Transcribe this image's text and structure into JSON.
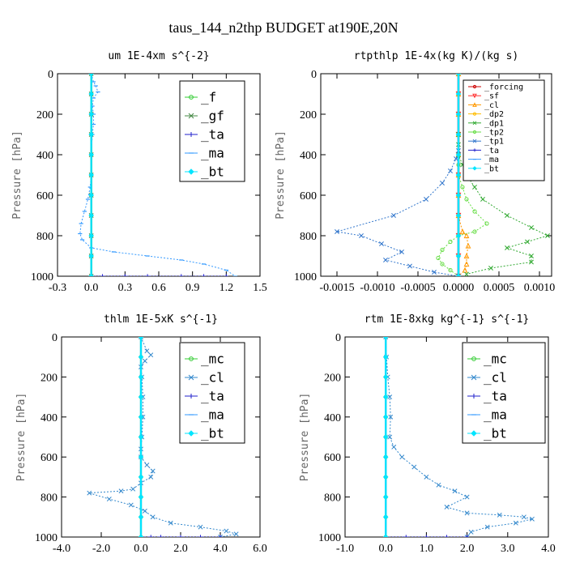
{
  "figure_title": "taus_144_n2thp  BUDGET at190E,20N",
  "chart_data": [
    {
      "type": "line",
      "title": "um  1E-4xm s^{-2}",
      "ylabel": "Pressure [hPa]",
      "xlim": [
        -0.3,
        1.5
      ],
      "ylim": [
        1000,
        0
      ],
      "xticks": [
        "-0.3",
        "0.0",
        "0.3",
        "0.6",
        "0.9",
        "1.2",
        "1.5"
      ],
      "xtick_values": [
        -0.3,
        0.0,
        0.3,
        0.6,
        0.9,
        1.2,
        1.5
      ],
      "yticks": [
        "0",
        "200",
        "400",
        "600",
        "800",
        "1000"
      ],
      "ytick_values": [
        0,
        200,
        400,
        600,
        800,
        1000
      ],
      "legend_position": "top-right",
      "legend_font_size": 16,
      "series": [
        {
          "name": "_f",
          "color": "#33cc33",
          "marker": "circle",
          "x": [
            0.0,
            0.0,
            0.0,
            0.0,
            0.0,
            0.0,
            0.0,
            0.0,
            0.0,
            0.0,
            0.0
          ],
          "y": [
            0,
            100,
            200,
            300,
            400,
            500,
            600,
            700,
            800,
            900,
            1000
          ]
        },
        {
          "name": "_gf",
          "color": "#448844",
          "marker": "x",
          "x": [
            0.0,
            0.0,
            0.0,
            0.0,
            0.0,
            0.0,
            0.0,
            0.0,
            0.0,
            0.0,
            0.0
          ],
          "y": [
            0,
            100,
            200,
            300,
            400,
            500,
            600,
            700,
            800,
            900,
            1000
          ]
        },
        {
          "name": "_ta",
          "color": "#2222cc",
          "marker": "plus",
          "x": [
            0.0,
            0.1,
            0.3,
            0.5,
            0.8,
            1.0,
            1.2
          ],
          "y": [
            1000,
            1000,
            1000,
            1000,
            1000,
            1000,
            1000
          ]
        },
        {
          "name": "_ma",
          "color": "#3399ff",
          "marker": "dash",
          "x": [
            0.0,
            0.02,
            0.04,
            0.06,
            0.02,
            0.01,
            0.02,
            0.02,
            0.01,
            0.0,
            0.0,
            -0.01,
            -0.03,
            -0.06,
            -0.09,
            -0.1,
            -0.08,
            0.0,
            0.2,
            0.5,
            0.8,
            1.0,
            1.2,
            1.28
          ],
          "y": [
            0,
            40,
            60,
            90,
            120,
            160,
            200,
            250,
            300,
            400,
            500,
            560,
            620,
            680,
            740,
            790,
            820,
            860,
            880,
            900,
            920,
            940,
            970,
            1000
          ]
        },
        {
          "name": "_bt",
          "color": "#00e5ff",
          "marker": "diamond",
          "x": [
            0.0,
            0.0,
            0.0,
            0.0,
            0.0,
            0.0,
            0.0,
            0.0,
            0.0,
            0.0,
            0.0
          ],
          "y": [
            0,
            100,
            200,
            300,
            400,
            500,
            600,
            700,
            800,
            900,
            1000
          ]
        }
      ]
    },
    {
      "type": "line",
      "title": "rtpthlp  1E-4x(kg K)/(kg s)",
      "ylabel": "Pressure [hPa]",
      "xlim": [
        -0.0017,
        0.00115
      ],
      "ylim": [
        1000,
        0
      ],
      "xticks": [
        "-0.0015",
        "-0.0010",
        "-0.0005",
        "0.0000",
        "0.0005",
        "0.0010"
      ],
      "xtick_values": [
        -0.0015,
        -0.001,
        -0.0005,
        0.0,
        0.0005,
        0.001
      ],
      "yticks": [
        "0",
        "200",
        "400",
        "600",
        "800",
        "1000"
      ],
      "ytick_values": [
        0,
        200,
        400,
        600,
        800,
        1000
      ],
      "legend_position": "top-right",
      "legend_font_size": 10,
      "series": [
        {
          "name": "_forcing",
          "color": "#cc0000",
          "marker": "circle",
          "x": [
            0.0,
            0.0,
            0.0,
            0.0,
            0.0,
            0.0,
            0.0,
            0.0,
            0.0,
            0.0,
            0.0
          ],
          "y": [
            0,
            100,
            200,
            300,
            400,
            500,
            600,
            700,
            800,
            900,
            1000
          ]
        },
        {
          "name": "_sf",
          "color": "#ff3333",
          "marker": "triangle-down",
          "x": [
            0.0,
            0.0,
            0.0,
            0.0,
            0.0,
            0.0,
            0.0,
            0.0,
            0.0,
            0.0,
            0.0
          ],
          "y": [
            0,
            100,
            200,
            300,
            400,
            500,
            600,
            700,
            800,
            900,
            1000
          ]
        },
        {
          "name": "_cl",
          "color": "#ff9900",
          "marker": "triangle",
          "x": [
            0.0,
            0.0,
            0.0,
            0.0,
            0.0,
            0.0,
            0.0,
            0.0,
            5e-05,
            0.0001,
            0.00012,
            0.0001,
            0.0001,
            8e-05,
            0.0
          ],
          "y": [
            0,
            100,
            200,
            300,
            400,
            500,
            600,
            700,
            780,
            800,
            850,
            900,
            940,
            970,
            1000
          ]
        },
        {
          "name": "_dp2",
          "color": "#ffbb00",
          "marker": "circle",
          "x": [
            0.0,
            0.0,
            0.0,
            0.0,
            0.0,
            0.0,
            0.0,
            0.0,
            0.0,
            0.0,
            0.0
          ],
          "y": [
            0,
            100,
            200,
            300,
            400,
            500,
            600,
            700,
            800,
            900,
            1000
          ]
        },
        {
          "name": "_dp1",
          "color": "#33aa33",
          "marker": "x",
          "x": [
            0.0,
            0.0,
            0.0,
            5e-05,
            0.0001,
            0.0002,
            0.0003,
            0.0006,
            0.0009,
            0.0011,
            0.00085,
            0.0006,
            0.0009,
            0.0009,
            0.0004,
            0.0001
          ],
          "y": [
            300,
            350,
            400,
            450,
            500,
            560,
            620,
            700,
            760,
            800,
            830,
            860,
            900,
            930,
            960,
            990
          ]
        },
        {
          "name": "_tp2",
          "color": "#66dd44",
          "marker": "circle",
          "x": [
            0.0,
            0.0,
            5e-05,
            0.0001,
            0.0002,
            0.00035,
            0.0002,
            0.0,
            -0.0001,
            -0.0002,
            -0.00025,
            -0.0002,
            -0.0001,
            0.0
          ],
          "y": [
            450,
            500,
            560,
            620,
            680,
            740,
            780,
            800,
            830,
            870,
            910,
            940,
            970,
            1000
          ]
        },
        {
          "name": "_tp1",
          "color": "#3377cc",
          "marker": "x",
          "x": [
            0.0,
            -3e-05,
            -0.0001,
            -0.0002,
            -0.0004,
            -0.0008,
            -0.0015,
            -0.0012,
            -0.00095,
            -0.0007,
            -0.0009,
            -0.0006,
            -0.0003,
            0.0
          ],
          "y": [
            380,
            420,
            480,
            540,
            620,
            700,
            780,
            800,
            840,
            880,
            920,
            950,
            980,
            1000
          ]
        },
        {
          "name": "_ta",
          "color": "#2222cc",
          "marker": "plus",
          "x": [
            0.0,
            0.0,
            0.0,
            0.0,
            0.0,
            0.0,
            0.0,
            0.0,
            0.0,
            0.0,
            0.0
          ],
          "y": [
            0,
            100,
            200,
            300,
            400,
            500,
            600,
            700,
            800,
            900,
            1000
          ]
        },
        {
          "name": "_ma",
          "color": "#3399ff",
          "marker": "dash",
          "x": [
            0.0,
            0.0,
            0.0,
            0.0,
            0.0,
            0.0,
            0.0,
            0.0,
            0.0,
            0.0,
            0.0
          ],
          "y": [
            0,
            100,
            200,
            300,
            400,
            500,
            600,
            700,
            800,
            900,
            1000
          ]
        },
        {
          "name": "_bt",
          "color": "#00e5ff",
          "marker": "diamond",
          "x": [
            0.0,
            0.0,
            0.0,
            0.0,
            0.0,
            0.0,
            0.0,
            0.0,
            0.0,
            0.0,
            0.0
          ],
          "y": [
            0,
            100,
            200,
            300,
            400,
            500,
            600,
            700,
            800,
            900,
            1000
          ]
        }
      ]
    },
    {
      "type": "line",
      "title": "thlm  1E-5xK s^{-1}",
      "ylabel": "Pressure [hPa]",
      "xlim": [
        -4.0,
        6.0
      ],
      "ylim": [
        1000,
        0
      ],
      "xticks": [
        "-4.0",
        "-2.0",
        "0.0",
        "2.0",
        "4.0",
        "6.0"
      ],
      "xtick_values": [
        -4.0,
        -2.0,
        0.0,
        2.0,
        4.0,
        6.0
      ],
      "yticks": [
        "0",
        "200",
        "400",
        "600",
        "800",
        "1000"
      ],
      "ytick_values": [
        0,
        200,
        400,
        600,
        800,
        1000
      ],
      "legend_position": "top-right",
      "legend_font_size": 16,
      "series": [
        {
          "name": "_mc",
          "color": "#33cc33",
          "marker": "circle",
          "x": [
            0.0,
            0.0,
            0.0,
            0.0,
            0.0,
            0.0,
            0.0,
            0.0,
            0.0,
            0.0,
            0.0
          ],
          "y": [
            0,
            100,
            200,
            300,
            400,
            500,
            600,
            700,
            800,
            900,
            1000
          ]
        },
        {
          "name": "_cl",
          "color": "#3388cc",
          "marker": "x",
          "x": [
            0.0,
            0.3,
            0.5,
            0.2,
            0.0,
            0.05,
            0.1,
            0.1,
            0.05,
            0.0,
            0.0,
            0.3,
            0.6,
            0.5,
            0.0,
            -0.4,
            -1.0,
            -2.6,
            -1.6,
            -0.5,
            0.2,
            0.6,
            1.5,
            3.0,
            4.3,
            4.8,
            4.0
          ],
          "y": [
            0,
            70,
            90,
            120,
            150,
            200,
            300,
            400,
            500,
            560,
            600,
            640,
            670,
            700,
            730,
            760,
            770,
            780,
            810,
            840,
            870,
            900,
            930,
            950,
            970,
            985,
            1000
          ]
        },
        {
          "name": "_ta",
          "color": "#2222cc",
          "marker": "plus",
          "x": [
            0.0,
            0.5,
            1.0,
            2.0,
            3.0,
            4.0
          ],
          "y": [
            1000,
            1000,
            1000,
            1000,
            1000,
            1000
          ]
        },
        {
          "name": "_ma",
          "color": "#3399ff",
          "marker": "dash",
          "x": [
            0.0,
            0.0,
            0.0,
            0.0,
            0.0,
            0.0,
            0.0,
            0.0,
            0.0,
            0.0,
            0.0
          ],
          "y": [
            0,
            100,
            200,
            300,
            400,
            500,
            600,
            700,
            800,
            900,
            1000
          ]
        },
        {
          "name": "_bt",
          "color": "#00e5ff",
          "marker": "diamond",
          "x": [
            0.0,
            0.0,
            0.0,
            0.0,
            0.0,
            0.0,
            0.0,
            0.0,
            0.0,
            0.0,
            0.0
          ],
          "y": [
            0,
            100,
            200,
            300,
            400,
            500,
            600,
            700,
            800,
            900,
            1000
          ]
        }
      ]
    },
    {
      "type": "line",
      "title": "rtm  1E-8xkg kg^{-1} s^{-1}",
      "ylabel": "Pressure [hPa]",
      "xlim": [
        -1.0,
        4.0
      ],
      "ylim": [
        1000,
        0
      ],
      "xticks": [
        "-1.0",
        "0.0",
        "1.0",
        "2.0",
        "3.0",
        "4.0"
      ],
      "xtick_values": [
        -1.0,
        0.0,
        1.0,
        2.0,
        3.0,
        4.0
      ],
      "yticks": [
        "0",
        "200",
        "400",
        "600",
        "800",
        "1000"
      ],
      "ytick_values": [
        0,
        200,
        400,
        600,
        800,
        1000
      ],
      "legend_position": "top-right",
      "legend_font_size": 16,
      "series": [
        {
          "name": "_mc",
          "color": "#33cc33",
          "marker": "circle",
          "x": [
            0.0,
            0.0,
            0.0,
            0.0,
            0.0,
            0.0,
            0.0,
            0.0,
            0.0,
            0.0,
            0.0
          ],
          "y": [
            0,
            100,
            200,
            300,
            400,
            500,
            600,
            700,
            800,
            900,
            1000
          ]
        },
        {
          "name": "_cl",
          "color": "#3388cc",
          "marker": "x",
          "x": [
            0.0,
            0.02,
            0.05,
            0.1,
            0.12,
            0.1,
            0.2,
            0.4,
            0.7,
            1.0,
            1.3,
            1.7,
            2.0,
            1.5,
            2.0,
            2.8,
            3.4,
            3.6,
            3.2,
            2.5,
            2.1,
            2.0
          ],
          "y": [
            0,
            100,
            200,
            300,
            400,
            500,
            550,
            600,
            650,
            700,
            740,
            770,
            800,
            850,
            880,
            890,
            900,
            910,
            930,
            950,
            975,
            1000
          ]
        },
        {
          "name": "_ta",
          "color": "#2222cc",
          "marker": "plus",
          "x": [
            0.0,
            0.5,
            1.0,
            1.5,
            2.0
          ],
          "y": [
            1000,
            1000,
            1000,
            1000,
            1000
          ]
        },
        {
          "name": "_ma",
          "color": "#3399ff",
          "marker": "dash",
          "x": [
            0.0,
            0.0,
            0.0,
            0.0,
            0.0,
            0.0,
            0.0,
            0.0,
            0.0,
            0.0,
            0.0
          ],
          "y": [
            0,
            100,
            200,
            300,
            400,
            500,
            600,
            700,
            800,
            900,
            1000
          ]
        },
        {
          "name": "_bt",
          "color": "#00e5ff",
          "marker": "diamond",
          "x": [
            0.0,
            0.0,
            0.0,
            0.0,
            0.0,
            0.0,
            0.0,
            0.0,
            0.0,
            0.0,
            0.0
          ],
          "y": [
            0,
            100,
            200,
            300,
            400,
            500,
            600,
            700,
            800,
            900,
            1000
          ]
        }
      ]
    }
  ]
}
